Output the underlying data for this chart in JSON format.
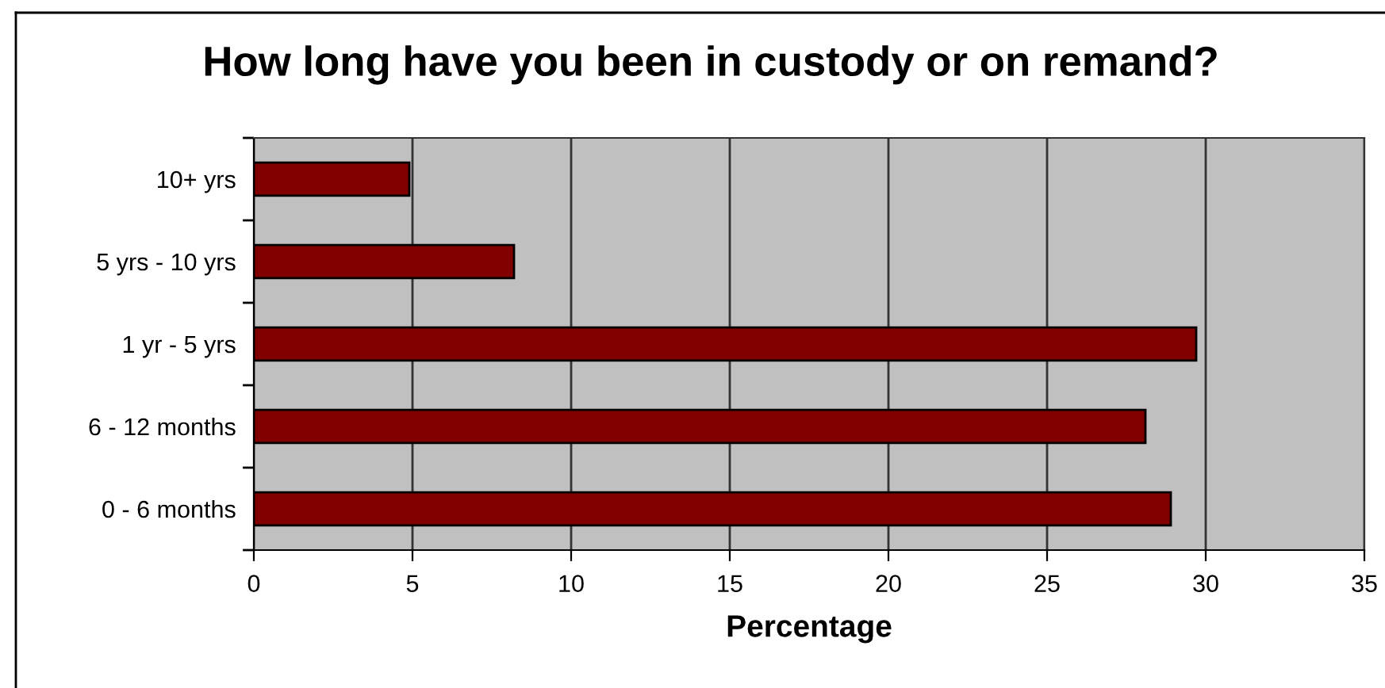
{
  "chart_data": {
    "type": "bar",
    "orientation": "horizontal",
    "title": "How long have you been in custody or on remand?",
    "xlabel": "Percentage",
    "categories": [
      "10+ yrs",
      "5 yrs - 10 yrs",
      "1 yr - 5 yrs",
      "6 - 12 months",
      "0 - 6 months"
    ],
    "values": [
      4.9,
      8.2,
      29.7,
      28.1,
      28.9
    ],
    "color": "#800000",
    "xlim": [
      0,
      35
    ],
    "xticks": [
      0,
      5,
      10,
      15,
      20,
      25,
      30,
      35
    ],
    "grid": "x",
    "legend": false
  }
}
